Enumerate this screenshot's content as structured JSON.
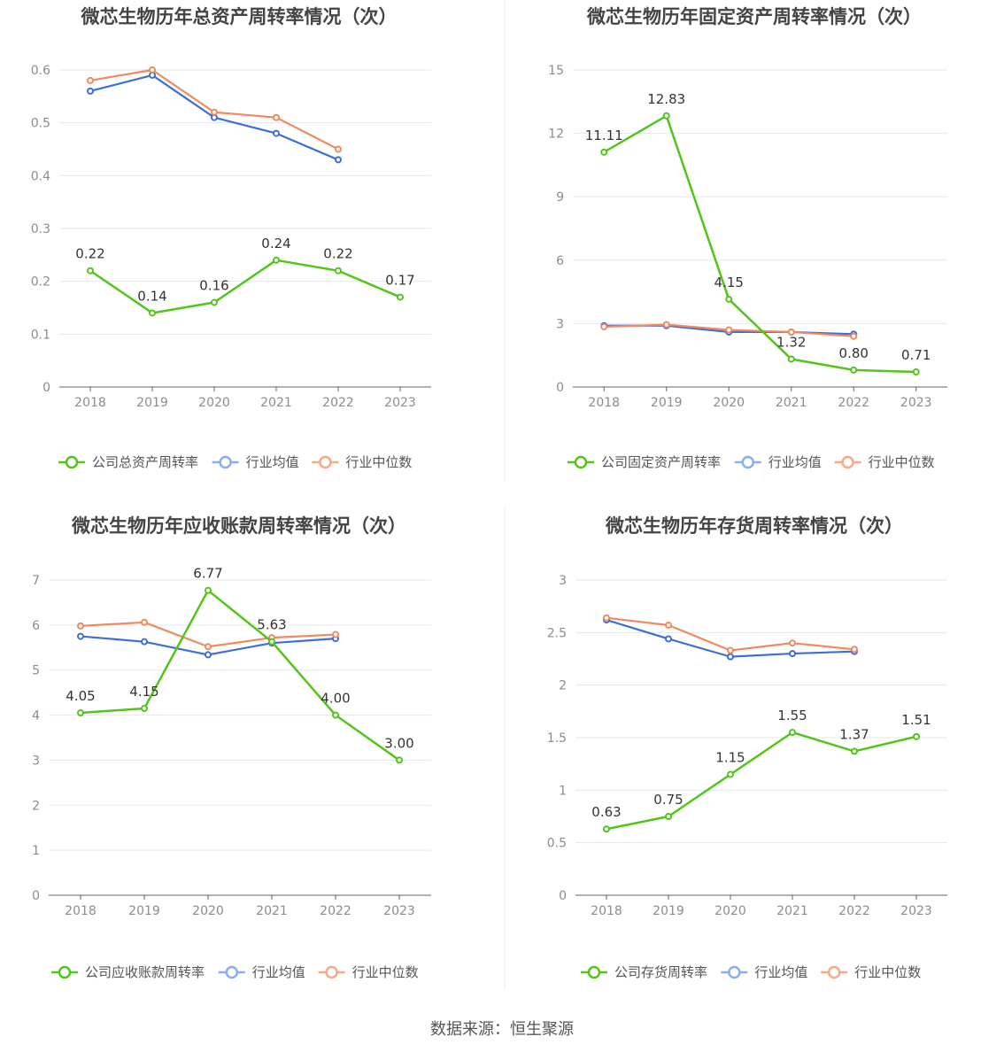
{
  "footer": {
    "source": "数据来源：恒生聚源"
  },
  "colors": {
    "company": "#52c41a",
    "avg": "#3b6fd8",
    "median": "#f08a5d",
    "grid": "#e3e7ef",
    "axis": "#666666",
    "tick": "#8c8c8c",
    "title": "#444444"
  },
  "chart_data": [
    {
      "type": "line",
      "title": "微芯生物历年总资产周转率情况（次）",
      "categories": [
        "2018",
        "2019",
        "2020",
        "2021",
        "2022",
        "2023"
      ],
      "ylim": [
        0,
        0.6
      ],
      "yticks": [
        0,
        0.1,
        0.2,
        0.3,
        0.4,
        0.5,
        0.6
      ],
      "ytick_labels": [
        "0",
        "0.1",
        "0.2",
        "0.3",
        "0.4",
        "0.5",
        "0.6"
      ],
      "grid": true,
      "legend_position": "bottom",
      "series": [
        {
          "name": "公司总资产周转率",
          "role": "company",
          "values": [
            0.22,
            0.14,
            0.16,
            0.24,
            0.22,
            0.17
          ],
          "labels": [
            "0.22",
            "0.14",
            "0.16",
            "0.24",
            "0.22",
            "0.17"
          ]
        },
        {
          "name": "行业均值",
          "role": "avg",
          "values": [
            0.56,
            0.59,
            0.51,
            0.48,
            0.43,
            null
          ]
        },
        {
          "name": "行业中位数",
          "role": "median",
          "values": [
            0.58,
            0.6,
            0.52,
            0.51,
            0.45,
            null
          ]
        }
      ]
    },
    {
      "type": "line",
      "title": "微芯生物历年固定资产周转率情况（次）",
      "categories": [
        "2018",
        "2019",
        "2020",
        "2021",
        "2022",
        "2023"
      ],
      "ylim": [
        0,
        15
      ],
      "yticks": [
        0,
        3,
        6,
        9,
        12,
        15
      ],
      "ytick_labels": [
        "0",
        "3",
        "6",
        "9",
        "12",
        "15"
      ],
      "grid": true,
      "legend_position": "bottom",
      "series": [
        {
          "name": "公司固定资产周转率",
          "role": "company",
          "values": [
            11.11,
            12.83,
            4.15,
            1.32,
            0.8,
            0.71
          ],
          "labels": [
            "11.11",
            "12.83",
            "4.15",
            "1.32",
            "0.80",
            "0.71"
          ]
        },
        {
          "name": "行业均值",
          "role": "avg",
          "values": [
            2.9,
            2.9,
            2.6,
            2.6,
            2.5,
            null
          ]
        },
        {
          "name": "行业中位数",
          "role": "median",
          "values": [
            2.85,
            2.95,
            2.7,
            2.6,
            2.4,
            null
          ]
        }
      ]
    },
    {
      "type": "line",
      "title": "微芯生物历年应收账款周转率情况（次）",
      "categories": [
        "2018",
        "2019",
        "2020",
        "2021",
        "2022",
        "2023"
      ],
      "ylim": [
        0,
        7
      ],
      "yticks": [
        0,
        1,
        2,
        3,
        4,
        5,
        6,
        7
      ],
      "ytick_labels": [
        "0",
        "1",
        "2",
        "3",
        "4",
        "5",
        "6",
        "7"
      ],
      "grid": true,
      "legend_position": "bottom",
      "series": [
        {
          "name": "公司应收账款周转率",
          "role": "company",
          "values": [
            4.05,
            4.15,
            6.77,
            5.63,
            4.0,
            3.0
          ],
          "labels": [
            "4.05",
            "4.15",
            "6.77",
            "5.63",
            "4.00",
            "3.00"
          ]
        },
        {
          "name": "行业均值",
          "role": "avg",
          "values": [
            5.75,
            5.63,
            5.34,
            5.6,
            5.7,
            null
          ]
        },
        {
          "name": "行业中位数",
          "role": "median",
          "values": [
            5.98,
            6.06,
            5.52,
            5.72,
            5.79,
            null
          ]
        }
      ]
    },
    {
      "type": "line",
      "title": "微芯生物历年存货周转率情况（次）",
      "categories": [
        "2018",
        "2019",
        "2020",
        "2021",
        "2022",
        "2023"
      ],
      "ylim": [
        0,
        3
      ],
      "yticks": [
        0,
        0.5,
        1,
        1.5,
        2,
        2.5,
        3
      ],
      "ytick_labels": [
        "0",
        "0.5",
        "1",
        "1.5",
        "2",
        "2.5",
        "3"
      ],
      "grid": true,
      "legend_position": "bottom",
      "series": [
        {
          "name": "公司存货周转率",
          "role": "company",
          "values": [
            0.63,
            0.75,
            1.15,
            1.55,
            1.37,
            1.51
          ],
          "labels": [
            "0.63",
            "0.75",
            "1.15",
            "1.55",
            "1.37",
            "1.51"
          ]
        },
        {
          "name": "行业均值",
          "role": "avg",
          "values": [
            2.62,
            2.44,
            2.27,
            2.3,
            2.32,
            null
          ]
        },
        {
          "name": "行业中位数",
          "role": "median",
          "values": [
            2.64,
            2.57,
            2.33,
            2.4,
            2.34,
            null
          ]
        }
      ]
    }
  ]
}
